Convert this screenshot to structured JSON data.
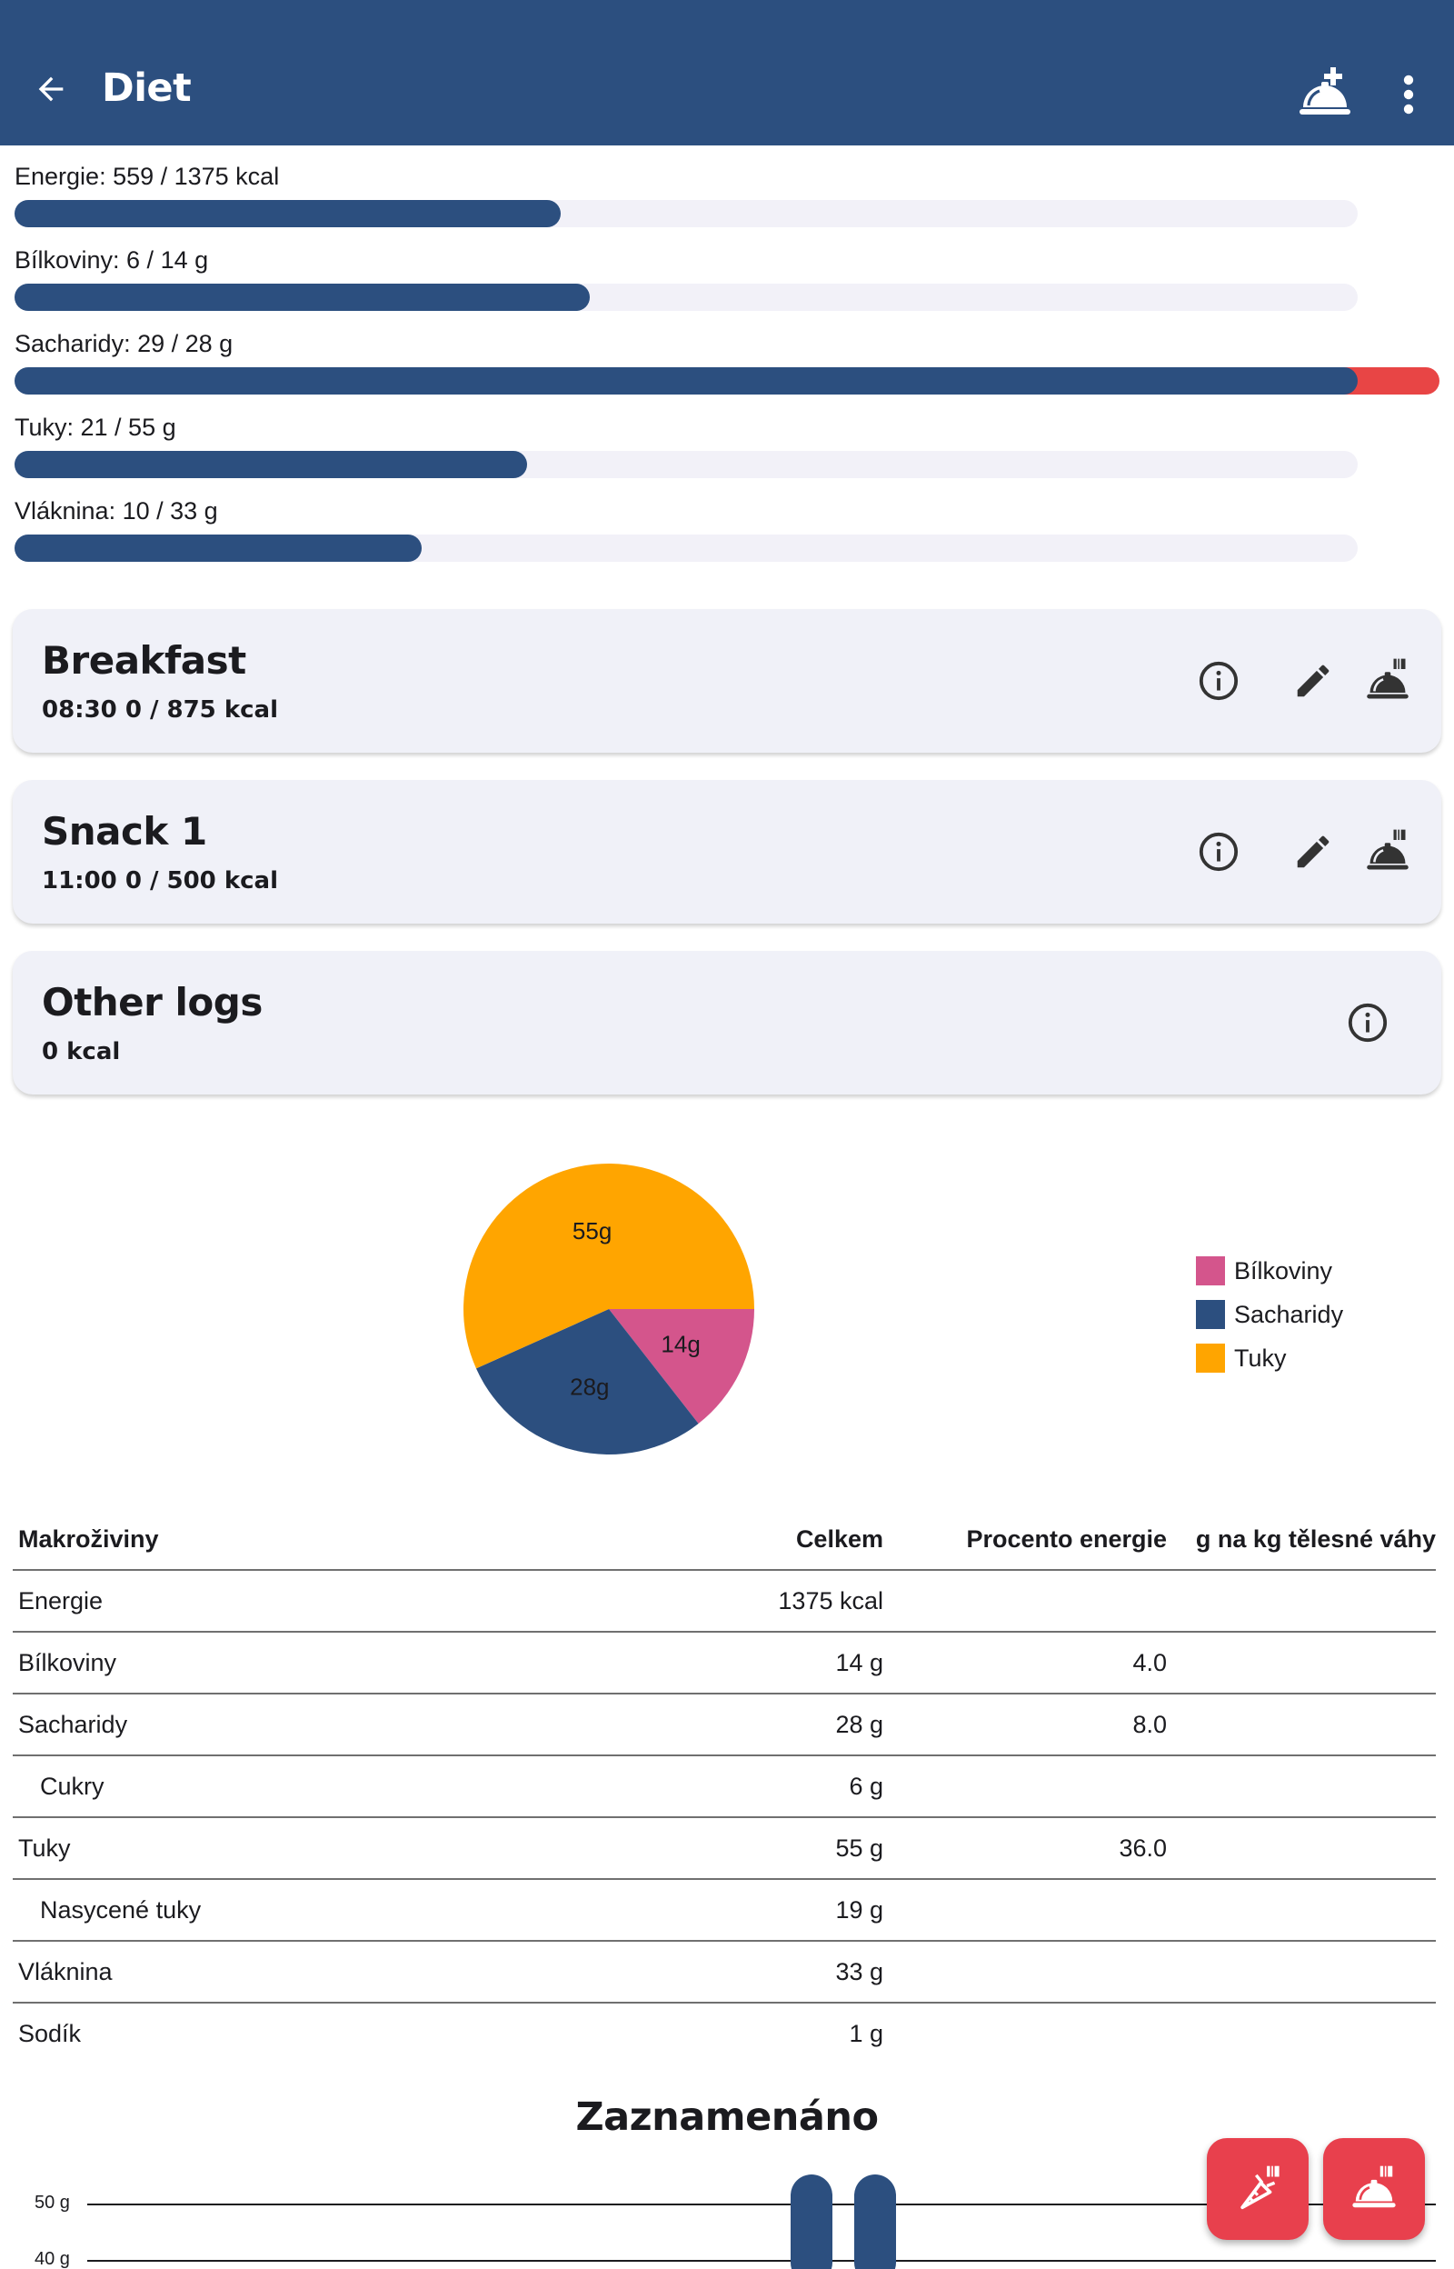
{
  "appbar": {
    "title": "Diet",
    "back_icon": "arrow-back-icon",
    "add_meal_icon": "room-service-plus-icon",
    "more_icon": "more-vertical-icon",
    "color": "#2c4f7f"
  },
  "nutrients": [
    {
      "label": "Energie: 559 / 1375 kcal",
      "value": 559,
      "target": 1375
    },
    {
      "label": "Bílkoviny: 6 / 14 g",
      "value": 6,
      "target": 14
    },
    {
      "label": "Sacharidy: 29 / 28 g",
      "value": 29,
      "target": 28
    },
    {
      "label": "Tuky: 21 / 55 g",
      "value": 21,
      "target": 55
    },
    {
      "label": "Vláknina: 10 / 33 g",
      "value": 10,
      "target": 33
    }
  ],
  "meals": [
    {
      "name": "Breakfast",
      "meta": "08:30   0 / 875 kcal"
    },
    {
      "name": "Snack 1",
      "meta": "11:00   0 / 500 kcal"
    },
    {
      "name": "Other logs",
      "meta": "0 kcal"
    }
  ],
  "chart_data": {
    "type": "pie",
    "series": [
      {
        "name": "Bílkoviny",
        "value": 14,
        "label": "14g",
        "color": "#d4558c"
      },
      {
        "name": "Sacharidy",
        "value": 28,
        "label": "28g",
        "color": "#2c4f7f"
      },
      {
        "name": "Tuky",
        "value": 55,
        "label": "55g",
        "color": "#ffa500"
      }
    ],
    "legend_position": "right"
  },
  "table": {
    "headers": [
      "Makroživiny",
      "Celkem",
      "Procento energie",
      "g na kg tělesné váhy"
    ],
    "rows": [
      {
        "name": "Energie",
        "total": "1375 kcal",
        "percent": "",
        "per_kg": "",
        "indent": false
      },
      {
        "name": "Bílkoviny",
        "total": "14 g",
        "percent": "4.0",
        "per_kg": "",
        "indent": false
      },
      {
        "name": "Sacharidy",
        "total": "28 g",
        "percent": "8.0",
        "per_kg": "",
        "indent": false
      },
      {
        "name": "Cukry",
        "total": "6 g",
        "percent": "",
        "per_kg": "",
        "indent": true
      },
      {
        "name": "Tuky",
        "total": "55 g",
        "percent": "36.0",
        "per_kg": "",
        "indent": false
      },
      {
        "name": "Nasycené tuky",
        "total": "19 g",
        "percent": "",
        "per_kg": "",
        "indent": true
      },
      {
        "name": "Vláknina",
        "total": "33 g",
        "percent": "",
        "per_kg": "",
        "indent": false
      },
      {
        "name": "Sodík",
        "total": "1 g",
        "percent": "",
        "per_kg": "",
        "indent": false
      }
    ]
  },
  "logged": {
    "title": "Zaznamenáno",
    "y_ticks": [
      "50 g",
      "40 g"
    ]
  },
  "fabs": [
    {
      "icon": "log-food-icon"
    },
    {
      "icon": "log-meal-icon"
    }
  ]
}
